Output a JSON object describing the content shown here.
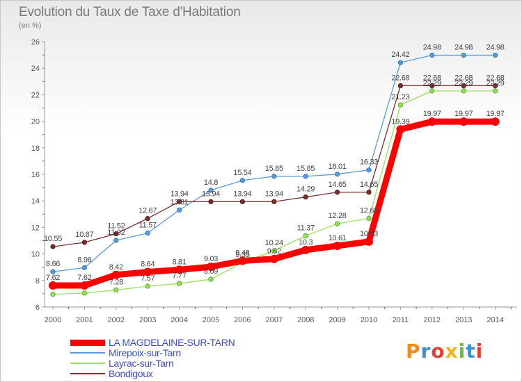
{
  "title": "Evolution du Taux de Taxe d'Habitation",
  "unit_label": "(en %)",
  "logo_text": "Proxiti",
  "chart_data": {
    "type": "line",
    "title": "Evolution du Taux de Taxe d'Habitation",
    "ylabel": "(en %)",
    "xlabel": "",
    "ylim": [
      6,
      26
    ],
    "yticks": [
      6,
      8,
      10,
      12,
      14,
      16,
      18,
      20,
      22,
      24,
      26
    ],
    "grid": false,
    "legend_position": "bottom",
    "x": [
      "2000",
      "2001",
      "2002",
      "2003",
      "2004",
      "2005",
      "2006",
      "2007",
      "2008",
      "2009",
      "2010",
      "2011",
      "2012",
      "2013",
      "2014"
    ],
    "series": [
      {
        "name": "LA MAGDELAINE-SUR-TARN",
        "color": "#ff0000",
        "values": [
          7.62,
          7.62,
          8.42,
          8.64,
          8.81,
          9.03,
          9.48,
          9.62,
          10.3,
          10.61,
          10.93,
          19.39,
          19.97,
          19.97,
          19.97
        ],
        "labels": [
          "7.62",
          "7.62",
          "8.42",
          "8.64",
          "8.81",
          "9.03",
          "9.48",
          "9.62",
          "10.3",
          "10.61",
          "10.93",
          "19.39",
          "19.97",
          "19.97",
          "19.97"
        ]
      },
      {
        "name": "Mirepoix-sur-Tarn",
        "color": "#5b9bd5",
        "values": [
          8.66,
          8.96,
          11.02,
          11.57,
          13.31,
          14.8,
          15.54,
          15.85,
          15.85,
          16.01,
          16.33,
          24.42,
          24.98,
          24.98,
          24.98
        ],
        "labels": [
          "8.66",
          "8.96",
          "11.02",
          "11.57",
          "13.31",
          "14.8",
          "15.54",
          "15.85",
          "15.85",
          "16.01",
          "16.33",
          "24.42",
          "24.98",
          "24.98",
          "24.98"
        ]
      },
      {
        "name": "Layrac-sur-Tarn",
        "color": "#99e05a",
        "values": [
          6.95,
          7.05,
          7.28,
          7.57,
          7.77,
          8.09,
          9.35,
          10.24,
          11.37,
          12.28,
          12.68,
          21.23,
          22.29,
          22.29,
          22.29
        ],
        "labels": [
          "",
          "",
          "7.28",
          "7.57",
          "7.77",
          "8.09",
          "9.35",
          "10.24",
          "11.37",
          "12.28",
          "12.68",
          "21.23",
          "22.29",
          "22.29",
          "22.29"
        ]
      },
      {
        "name": "Bondigoux",
        "color": "#7a2e2e",
        "values": [
          10.55,
          10.87,
          11.52,
          12.67,
          13.94,
          13.94,
          13.94,
          13.94,
          14.29,
          14.65,
          14.65,
          22.68,
          22.68,
          22.68,
          22.68
        ],
        "labels": [
          "10.55",
          "10.87",
          "11.52",
          "12.67",
          "13.94",
          "13.94",
          "13.94",
          "13.94",
          "14.29",
          "14.65",
          "14.65",
          "22.68",
          "22.68",
          "22.68",
          "22.68"
        ]
      }
    ]
  }
}
